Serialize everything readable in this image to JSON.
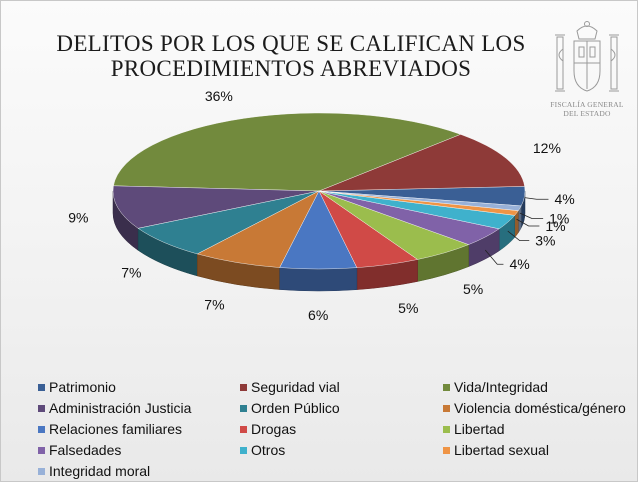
{
  "title_line1": "DELITOS POR LOS QUE SE CALIFICAN LOS",
  "title_line2": "PROCEDIMIENTOS ABREVIADOS",
  "emblem_text_line1": "FISCALÍA GENERAL",
  "emblem_text_line2": "DEL ESTADO",
  "chart_data": {
    "type": "pie",
    "title": "DELITOS POR LOS QUE SE CALIFICAN LOS PROCEDIMIENTOS ABREVIADOS",
    "style": "3d",
    "legend_placement": "bottom",
    "slices": [
      {
        "name": "Patrimonio",
        "value": 4,
        "label": "4%",
        "color": "#3a5f95"
      },
      {
        "name": "Seguridad vial",
        "value": 12,
        "label": "12%",
        "color": "#8e3a38"
      },
      {
        "name": "Vida/Integridad",
        "value": 36,
        "label": "36%",
        "color": "#728a3d"
      },
      {
        "name": "Administración Justicia",
        "value": 9,
        "label": "9%",
        "color": "#5e4a7a"
      },
      {
        "name": "Orden Público",
        "value": 7,
        "label": "7%",
        "color": "#2f8091"
      },
      {
        "name": "Violencia doméstica/género",
        "value": 7,
        "label": "7%",
        "color": "#c87936"
      },
      {
        "name": "Relaciones familiares",
        "value": 6,
        "label": "6%",
        "color": "#4a77c2"
      },
      {
        "name": "Drogas",
        "value": 5,
        "label": "5%",
        "color": "#d04a47"
      },
      {
        "name": "Libertad",
        "value": 5,
        "label": "5%",
        "color": "#9bbd4d"
      },
      {
        "name": "Falsedades",
        "value": 4,
        "label": "4%",
        "color": "#8062a8"
      },
      {
        "name": "Otros",
        "value": 3,
        "label": "3%",
        "color": "#3fb1cc"
      },
      {
        "name": "Libertad sexual",
        "value": 1,
        "label": "1%",
        "color": "#ef9445"
      },
      {
        "name": "Integridad moral",
        "value": 1,
        "label": "1%",
        "color": "#98b1d8"
      }
    ]
  }
}
